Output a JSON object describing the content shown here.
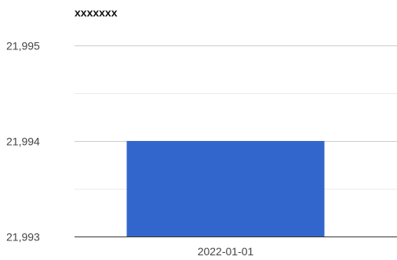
{
  "chart_data": {
    "type": "bar",
    "title": "xxxxxxx",
    "xlabel": "",
    "ylabel": "",
    "categories": [
      "2022-01-01"
    ],
    "values": [
      21994
    ],
    "ylim": [
      21993,
      21995
    ],
    "y_ticks": [
      21993,
      21994,
      21995
    ],
    "y_tick_labels": [
      "21,993",
      "21,994",
      "21,995"
    ],
    "grid": true,
    "legend": "none",
    "colors": {
      "bar": "#3366CC",
      "gridline_major": "#CCCCCC",
      "gridline_minor": "#EBEBEB",
      "axis_baseline": "#333333",
      "tick_text": "#444444",
      "title_text": "#111111"
    }
  }
}
